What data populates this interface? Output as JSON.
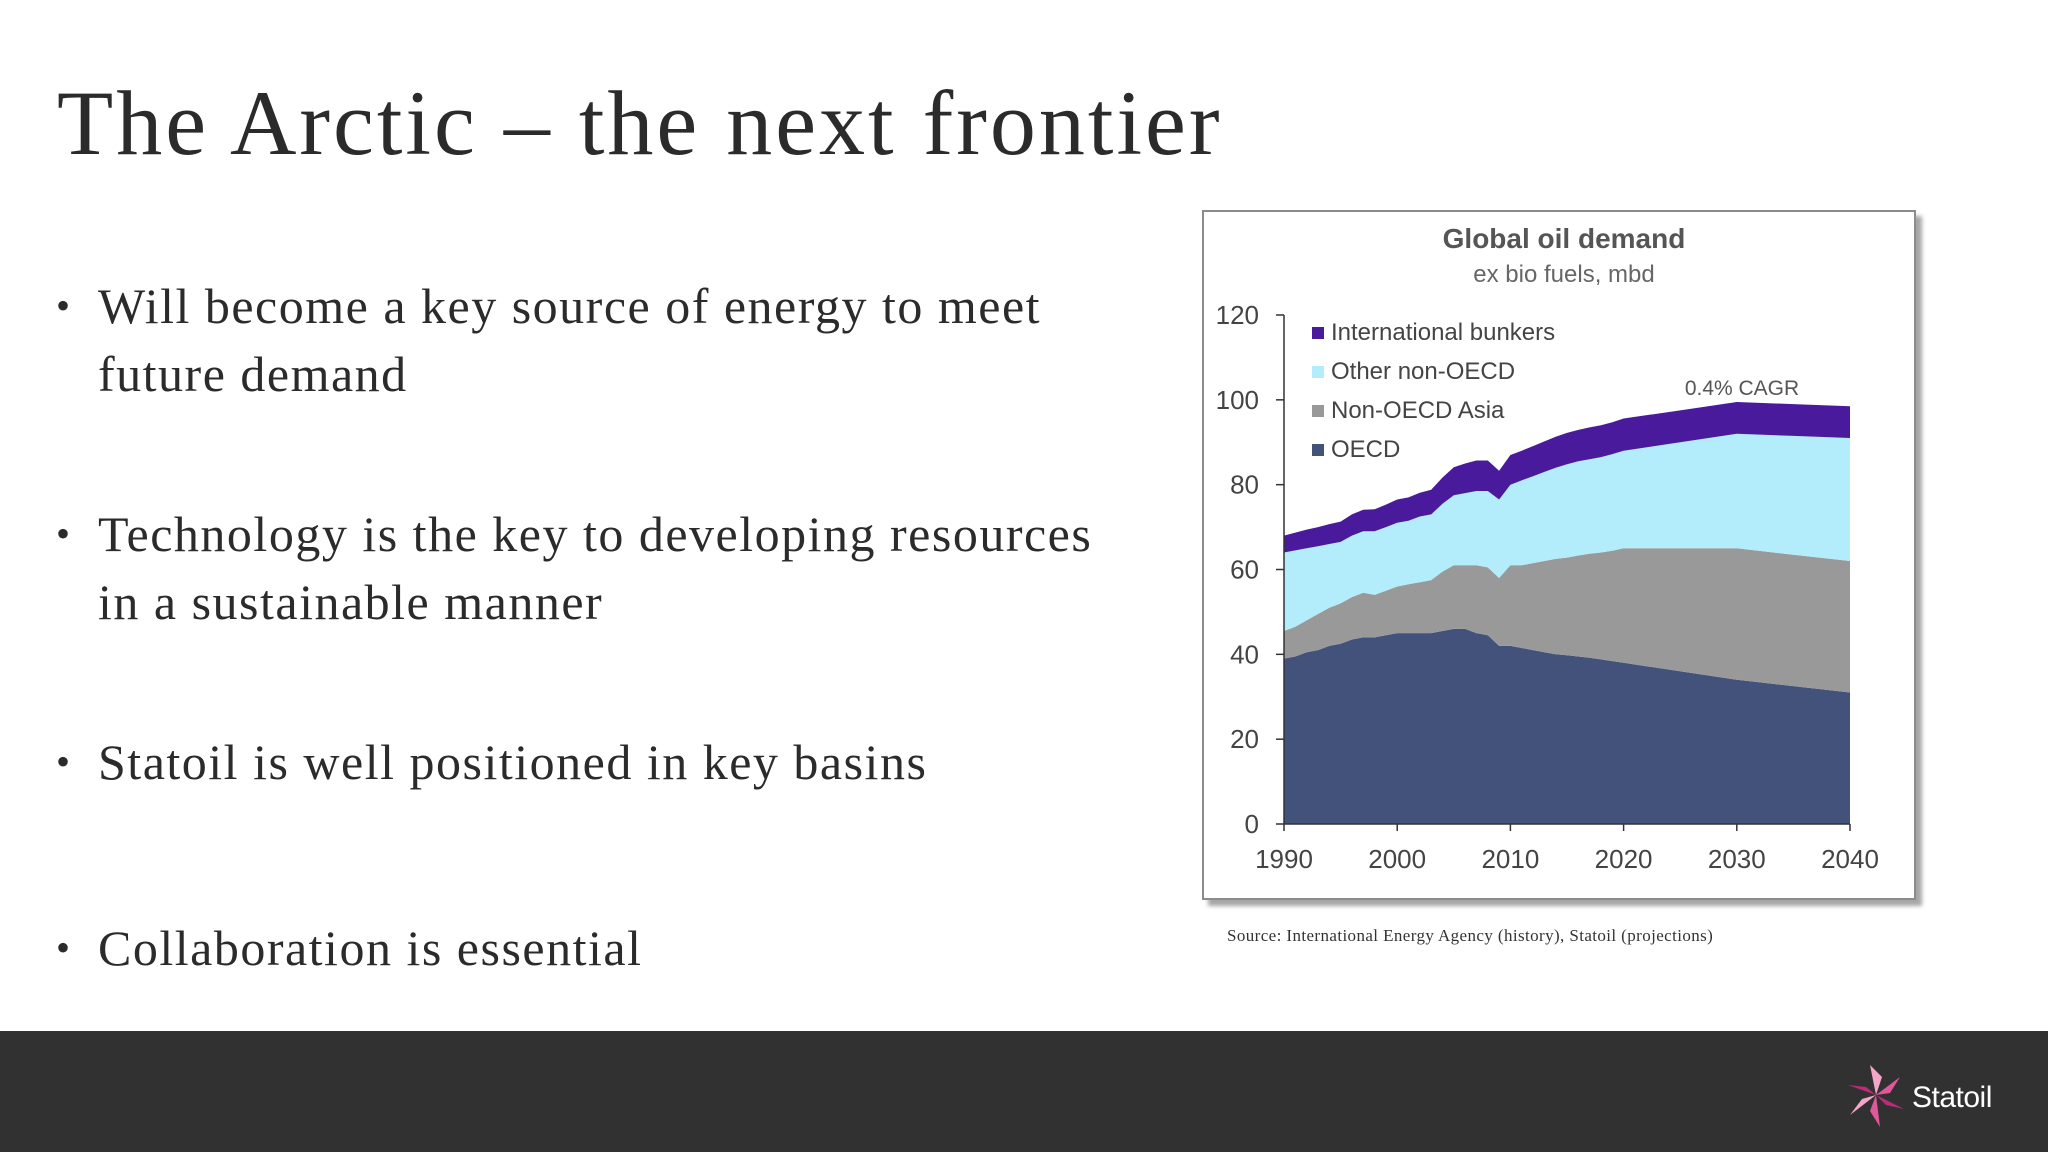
{
  "slide": {
    "title": "The Arctic – the next frontier",
    "bullets": [
      "Will become a key source of energy to meet future demand",
      "Technology is the key to developing resources in a sustainable manner",
      "Statoil is well positioned in key basins",
      "Collaboration is essential"
    ],
    "source": "Source: International Energy Agency (history), Statoil (projections)"
  },
  "brand": {
    "name": "Statoil",
    "footer_color": "#323132",
    "logo_color": "#e0579b"
  },
  "chart_data": {
    "type": "area",
    "stacked": true,
    "title": "Global oil demand",
    "subtitle": "ex bio fuels, mbd",
    "annotation": "0.4% CAGR",
    "xlabel": "",
    "ylabel": "",
    "xlim": [
      1990,
      2040
    ],
    "ylim": [
      0,
      120
    ],
    "xticks": [
      1990,
      2000,
      2010,
      2020,
      2030,
      2040
    ],
    "yticks": [
      0,
      20,
      40,
      60,
      80,
      100,
      120
    ],
    "legend_position": "top-left",
    "x": [
      1990,
      1991,
      1992,
      1993,
      1994,
      1995,
      1996,
      1997,
      1998,
      1999,
      2000,
      2001,
      2002,
      2003,
      2004,
      2005,
      2006,
      2007,
      2008,
      2009,
      2010,
      2011,
      2012,
      2013,
      2014,
      2015,
      2016,
      2017,
      2018,
      2019,
      2020,
      2025,
      2030,
      2035,
      2040
    ],
    "series": [
      {
        "name": "OECD",
        "color": "#42527b",
        "values": [
          39,
          39.5,
          40.5,
          41,
          42,
          42.5,
          43.5,
          44,
          44,
          44.5,
          45,
          45,
          45,
          45,
          45.5,
          46,
          46,
          45,
          44.5,
          42,
          42,
          41.5,
          41,
          40.5,
          40,
          39.8,
          39.5,
          39.2,
          38.8,
          38.4,
          38,
          36,
          34,
          32.5,
          31
        ]
      },
      {
        "name": "Non-OECD Asia",
        "color": "#999999",
        "values": [
          6.5,
          7,
          7.5,
          8.5,
          9,
          9.5,
          10,
          10.5,
          10,
          10.5,
          11,
          11.5,
          12,
          12.5,
          14,
          15,
          15,
          16,
          16,
          16,
          19,
          19.5,
          20.5,
          21.5,
          22.5,
          23,
          23.8,
          24.5,
          25.2,
          26,
          27,
          29,
          31,
          31,
          31
        ]
      },
      {
        "name": "Other non-OECD",
        "color": "#b3ecfb",
        "values": [
          18.5,
          18,
          17,
          16,
          15,
          14.5,
          14.5,
          14.5,
          15,
          15,
          15,
          15,
          15.5,
          15.5,
          16,
          16.5,
          17,
          17.5,
          18,
          18.5,
          19,
          20,
          20.5,
          21,
          21.5,
          22,
          22.2,
          22.3,
          22.5,
          22.8,
          23,
          25,
          27,
          28,
          29
        ]
      },
      {
        "name": "International bunkers",
        "color": "#4a1a9c",
        "values": [
          4,
          4.2,
          4.4,
          4.5,
          4.7,
          4.8,
          5,
          5.1,
          5.2,
          5.3,
          5.5,
          5.5,
          5.6,
          5.8,
          6.2,
          6.6,
          7,
          7.2,
          7.2,
          6.8,
          7,
          7,
          7.1,
          7.2,
          7.3,
          7.4,
          7.4,
          7.5,
          7.5,
          7.5,
          7.6,
          7.5,
          7.5,
          7.5,
          7.5
        ]
      }
    ]
  }
}
